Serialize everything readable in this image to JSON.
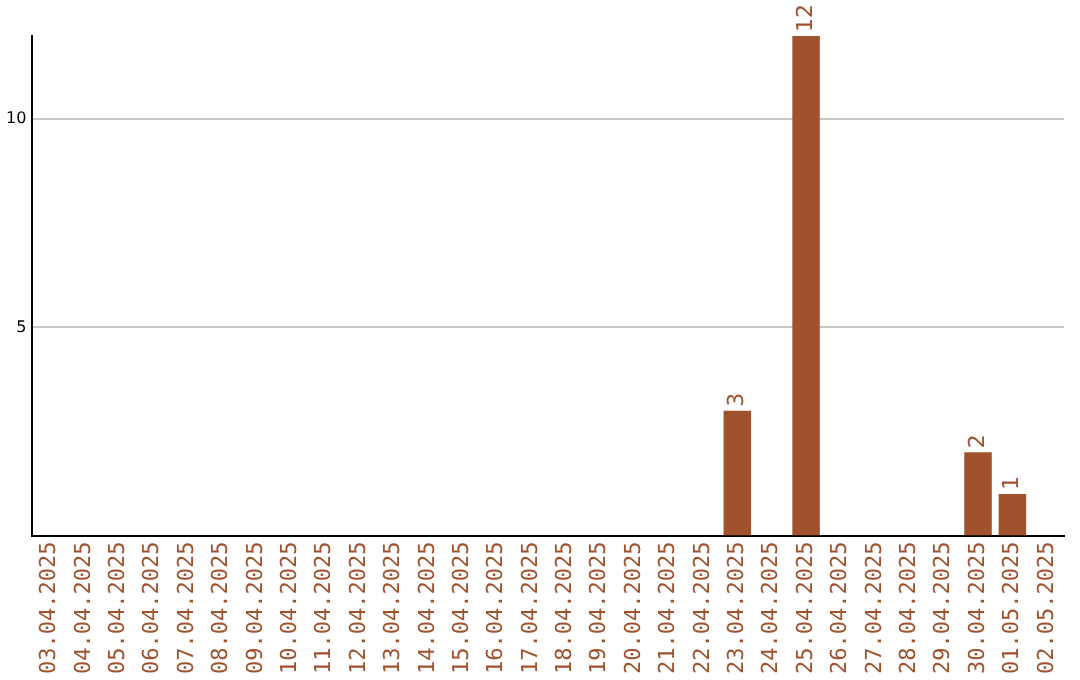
{
  "chart_data": {
    "type": "bar",
    "categories": [
      "03.04.2025",
      "04.04.2025",
      "05.04.2025",
      "06.04.2025",
      "07.04.2025",
      "08.04.2025",
      "09.04.2025",
      "10.04.2025",
      "11.04.2025",
      "12.04.2025",
      "13.04.2025",
      "14.04.2025",
      "15.04.2025",
      "16.04.2025",
      "17.04.2025",
      "18.04.2025",
      "19.04.2025",
      "20.04.2025",
      "21.04.2025",
      "22.04.2025",
      "23.04.2025",
      "24.04.2025",
      "25.04.2025",
      "26.04.2025",
      "27.04.2025",
      "28.04.2025",
      "29.04.2025",
      "30.04.2025",
      "01.05.2025",
      "02.05.2025"
    ],
    "values": [
      0,
      0,
      0,
      0,
      0,
      0,
      0,
      0,
      0,
      0,
      0,
      0,
      0,
      0,
      0,
      0,
      0,
      0,
      0,
      0,
      3,
      0,
      12,
      0,
      0,
      0,
      0,
      2,
      1,
      0
    ],
    "value_labels": [
      null,
      null,
      null,
      null,
      null,
      null,
      null,
      null,
      null,
      null,
      null,
      null,
      null,
      null,
      null,
      null,
      null,
      null,
      null,
      null,
      "3",
      null,
      "12",
      null,
      null,
      null,
      null,
      "2",
      "1",
      null
    ],
    "color": "#a0522d",
    "ylim": [
      0,
      12
    ],
    "yticks": [
      5,
      10
    ],
    "grid": "y",
    "legend": false
  }
}
